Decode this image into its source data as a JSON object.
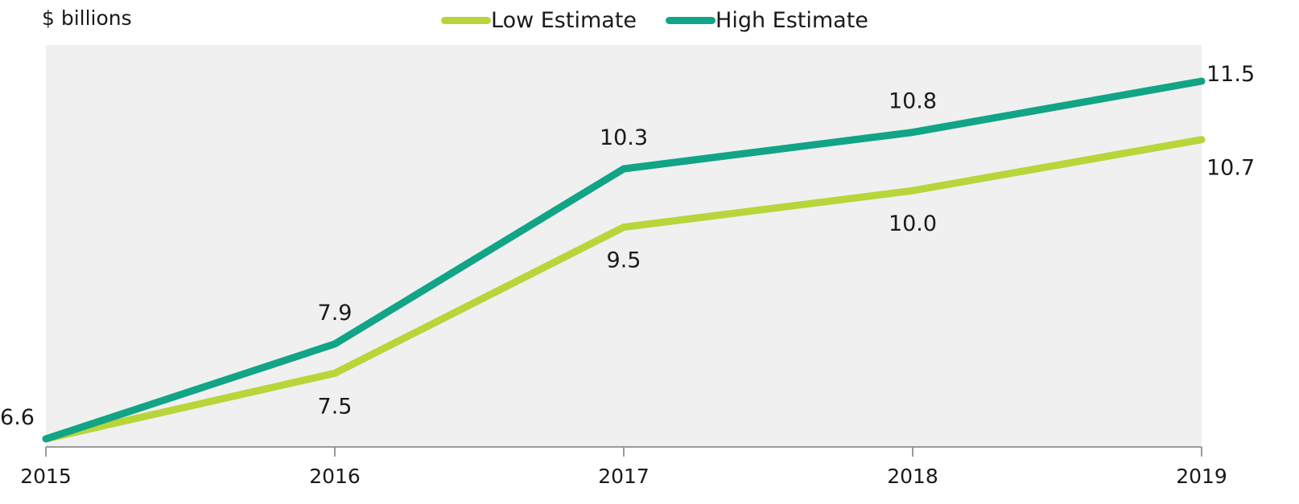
{
  "colors": {
    "low": "#b8d53a",
    "high": "#12a487",
    "plot_background": "#f0f0f0",
    "axis": "#9a9a9a",
    "text": "#1a1a1a"
  },
  "chart_data": {
    "type": "line",
    "title": "",
    "unit_label": "$ billions",
    "xlabel": "",
    "ylabel": "",
    "x": [
      "2015",
      "2016",
      "2017",
      "2018",
      "2019"
    ],
    "ylim": [
      6.6,
      12.2
    ],
    "grid": false,
    "legend_position": "top-center",
    "series": [
      {
        "key": "low",
        "name": "Low Estimate",
        "values": [
          6.6,
          7.5,
          9.5,
          10.0,
          10.7
        ],
        "label_positions": [
          "none",
          "below",
          "below",
          "below",
          "below-right"
        ]
      },
      {
        "key": "high",
        "name": "High Estimate",
        "values": [
          6.6,
          7.9,
          10.3,
          10.8,
          11.5
        ],
        "label_positions": [
          "above-left",
          "above",
          "above",
          "above",
          "right"
        ]
      }
    ]
  }
}
